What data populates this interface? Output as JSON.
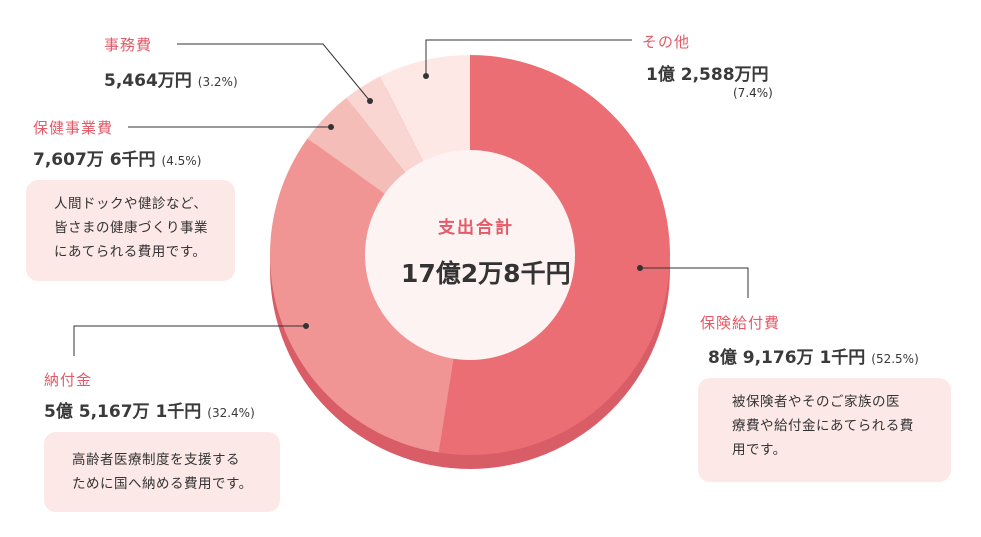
{
  "chart_data": {
    "type": "pie",
    "center": {
      "title": "支出合計",
      "value": "17億2万8千円"
    },
    "slices": [
      {
        "name": "保険給付費",
        "amount": "8億 9,176万 1千円",
        "percent": 52.5,
        "percent_text": "(52.5%)",
        "color": "#ec6e75",
        "note": [
          "被保険者やそのご家族の医",
          "療費や給付金にあてられる費",
          "用です。"
        ]
      },
      {
        "name": "納付金",
        "amount": "5億 5,167万 1千円",
        "percent": 32.4,
        "percent_text": "(32.4%)",
        "color": "#f19594",
        "note": [
          "高齢者医療制度を支援する",
          "ために国へ納める費用です。"
        ]
      },
      {
        "name": "保健事業費",
        "amount": "7,607万 6千円",
        "percent": 4.5,
        "percent_text": "(4.5%)",
        "color": "#f5bdb8",
        "note": [
          "人間ドックや健診など、",
          "皆さまの健康づくり事業",
          "にあてられる費用です。"
        ]
      },
      {
        "name": "事務費",
        "amount": "5,464万円",
        "percent": 3.2,
        "percent_text": "(3.2%)",
        "color": "#fad6d2",
        "note": []
      },
      {
        "name": "その他",
        "amount": "1億 2,588万円",
        "percent": 7.4,
        "percent_text": "(7.4%)",
        "color": "#fde8e5",
        "note": []
      }
    ],
    "colors": {
      "label": "#e45a67",
      "inner": "#fdf3f2",
      "rim": "#d95d66",
      "leader": "#333333",
      "note_bg": "#fce9e7"
    }
  }
}
